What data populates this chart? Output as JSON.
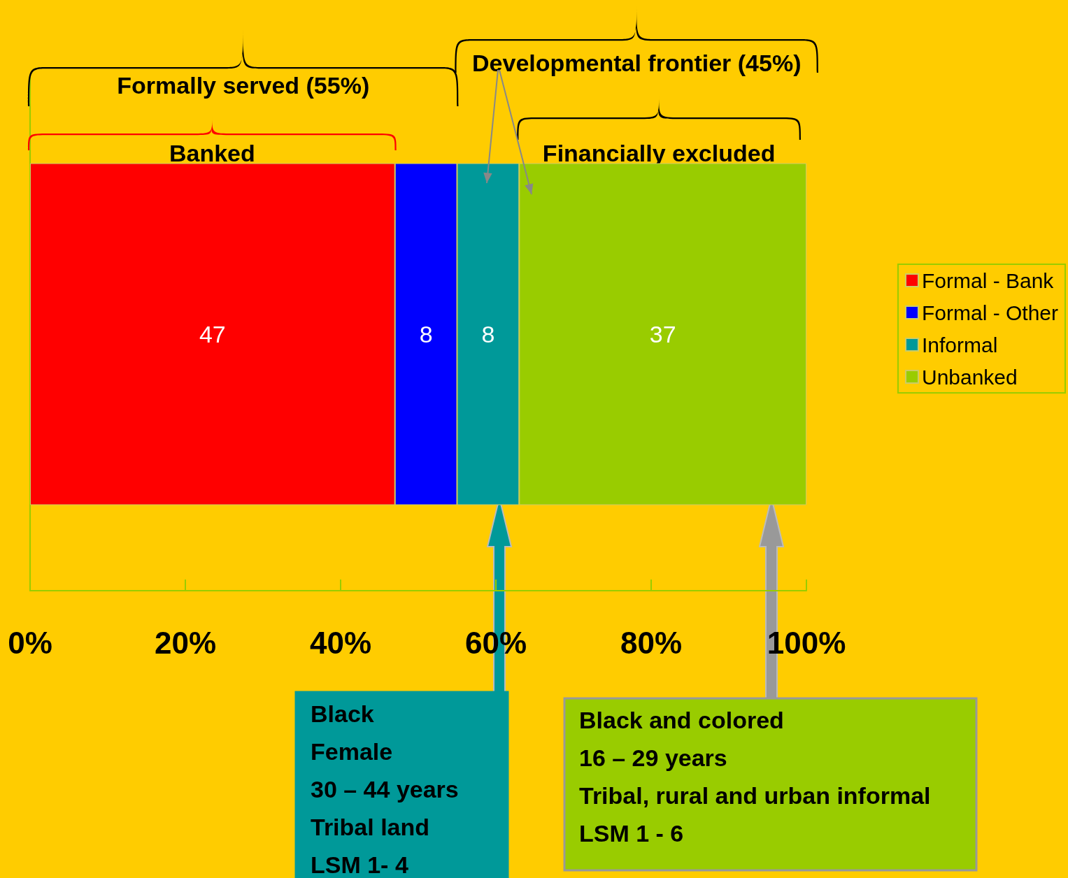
{
  "chart_data": {
    "type": "bar",
    "orientation": "horizontal",
    "stacked": true,
    "categories": [
      null
    ],
    "series": [
      {
        "name": "Formal - Bank",
        "color": "#ff0000",
        "values": [
          47
        ]
      },
      {
        "name": "Formal - Other",
        "color": "#0000ff",
        "values": [
          8
        ]
      },
      {
        "name": "Informal",
        "color": "#009999",
        "values": [
          8
        ]
      },
      {
        "name": "Unbanked",
        "color": "#99cc00",
        "values": [
          37
        ]
      }
    ],
    "xlim": [
      0,
      100
    ],
    "xticks": [
      {
        "value": 0,
        "label": "0%"
      },
      {
        "value": 20,
        "label": "20%"
      },
      {
        "value": 40,
        "label": "40%"
      },
      {
        "value": 60,
        "label": "60%"
      },
      {
        "value": 80,
        "label": "80%"
      },
      {
        "value": 100,
        "label": "100%"
      }
    ],
    "data_labels": true,
    "legend": "right",
    "grid": false,
    "annotations": [
      "Formally served (55%)",
      "Developmental frontier (45%)",
      "Banked",
      "Financially excluded",
      "Black\nFemale\n30 – 44 years\nTribal land\nLSM 1- 4",
      "Black and colored\n16 – 29 years\nTribal, rural and urban informal\nLSM 1 - 6"
    ]
  }
}
